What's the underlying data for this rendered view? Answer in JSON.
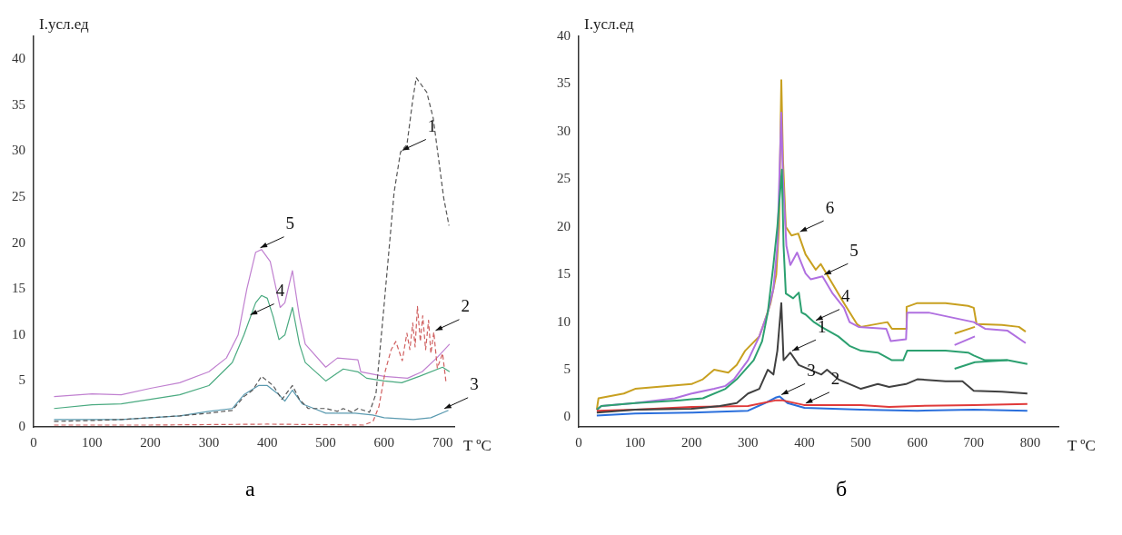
{
  "chart_data": [
    {
      "type": "line",
      "xlabel": "T ºC",
      "ylabel": "I.усл.ед",
      "xlim": [
        0,
        720
      ],
      "ylim": [
        0,
        42.5
      ],
      "xticks": [
        0,
        100,
        200,
        300,
        400,
        500,
        600,
        700
      ],
      "yticks": [
        0,
        5,
        10,
        15,
        20,
        25,
        30,
        35,
        40
      ],
      "grid": false,
      "legend": false,
      "marker": "none",
      "series": [
        {
          "color": "#555555",
          "line_style": "dashed",
          "x": [
            35,
            100,
            150,
            200,
            250,
            300,
            340,
            360,
            375,
            390,
            400,
            410,
            425,
            443,
            455,
            470,
            500,
            520,
            530,
            545,
            555,
            575,
            586,
            599,
            617,
            628,
            639,
            649,
            655,
            673,
            684,
            702,
            711
          ],
          "values": [
            0.6,
            0.7,
            0.8,
            1.0,
            1.2,
            1.5,
            1.8,
            3.3,
            4.0,
            5.5,
            5.0,
            4.5,
            3.0,
            4.5,
            3.0,
            2.0,
            2.0,
            1.7,
            2.0,
            1.6,
            2.0,
            1.6,
            3.6,
            12.6,
            25.5,
            29.9,
            30.7,
            35.6,
            38.0,
            36.4,
            33.6,
            24.9,
            21.9
          ]
        },
        {
          "color": "#d06060",
          "line_style": "dashed",
          "x": [
            35,
            200,
            400,
            565,
            581,
            591,
            602,
            612,
            620,
            631,
            639,
            644,
            649,
            653,
            657,
            662,
            666,
            671,
            676,
            680,
            685,
            691,
            700,
            706
          ],
          "values": [
            0.2,
            0.2,
            0.3,
            0.2,
            0.6,
            2.2,
            6.1,
            8.4,
            9.3,
            7.2,
            10.2,
            8.4,
            11.3,
            8.7,
            13.1,
            9.3,
            12.1,
            8.4,
            11.6,
            8.0,
            10.3,
            6.4,
            8.0,
            4.8
          ]
        },
        {
          "color": "#5a9ab0",
          "x": [
            35,
            150,
            250,
            300,
            340,
            360,
            385,
            400,
            420,
            430,
            443,
            460,
            480,
            500,
            550,
            580,
            600,
            650,
            680,
            710
          ],
          "values": [
            0.8,
            0.8,
            1.2,
            1.7,
            2.0,
            3.5,
            4.5,
            4.5,
            3.5,
            2.8,
            4.0,
            2.5,
            2.0,
            1.5,
            1.5,
            1.3,
            1.0,
            0.8,
            1.0,
            1.8
          ]
        },
        {
          "color": "#4aaa80",
          "x": [
            35,
            100,
            150,
            200,
            250,
            300,
            340,
            360,
            380,
            390,
            400,
            410,
            420,
            430,
            443,
            455,
            465,
            500,
            530,
            555,
            570,
            600,
            630,
            660,
            700,
            712
          ],
          "values": [
            2.0,
            2.4,
            2.5,
            3.0,
            3.5,
            4.5,
            7.0,
            10.0,
            13.5,
            14.3,
            14.0,
            12.0,
            9.5,
            10.0,
            13.0,
            9.0,
            7.0,
            5.0,
            6.3,
            6.0,
            5.3,
            5.0,
            4.8,
            5.5,
            6.5,
            6.0
          ]
        },
        {
          "color": "#c080d0",
          "x": [
            35,
            100,
            150,
            200,
            250,
            300,
            330,
            350,
            365,
            380,
            390,
            405,
            422,
            430,
            443,
            455,
            465,
            500,
            520,
            555,
            560,
            600,
            640,
            665,
            690,
            712
          ],
          "values": [
            3.3,
            3.6,
            3.5,
            4.2,
            4.8,
            6.0,
            7.5,
            10.0,
            15.0,
            19.0,
            19.3,
            18.0,
            13.0,
            13.5,
            17.0,
            12.0,
            9.0,
            6.5,
            7.5,
            7.3,
            6.0,
            5.5,
            5.3,
            6.0,
            7.5,
            9.0
          ]
        }
      ],
      "annotations": [
        {
          "text": "1",
          "x": 628,
          "y": 29.9
        },
        {
          "text": "2",
          "x": 685,
          "y": 10.3
        },
        {
          "text": "3",
          "x": 700,
          "y": 1.8
        },
        {
          "text": "4",
          "x": 368,
          "y": 12
        },
        {
          "text": "5",
          "x": 385,
          "y": 19.3
        },
        "а"
      ]
    },
    {
      "type": "line",
      "xlabel": "T ºC",
      "ylabel": "I.усл.ед",
      "xlim": [
        0,
        850
      ],
      "ylim": [
        -1,
        40
      ],
      "xticks": [
        0,
        100,
        200,
        300,
        400,
        500,
        600,
        700,
        800
      ],
      "yticks": [
        0,
        5,
        10,
        15,
        20,
        25,
        30,
        35,
        40
      ],
      "grid": false,
      "legend": false,
      "marker": "none",
      "series": [
        {
          "color": "#404040",
          "x": [
            32,
            100,
            200,
            250,
            280,
            300,
            320,
            335,
            345,
            352,
            359,
            363,
            375,
            390,
            410,
            430,
            440,
            460,
            480,
            500,
            530,
            550,
            580,
            600,
            650,
            680,
            700,
            750,
            795
          ],
          "values": [
            0.5,
            0.8,
            0.9,
            1.2,
            1.5,
            2.5,
            3.0,
            5.0,
            4.5,
            7.0,
            12.0,
            6.0,
            6.8,
            5.5,
            5.0,
            4.5,
            5.0,
            4.0,
            3.5,
            3.0,
            3.5,
            3.2,
            3.5,
            4.0,
            3.8,
            3.8,
            2.8,
            2.7,
            2.5
          ]
        },
        {
          "color": "#e03a3a",
          "x": [
            32,
            100,
            200,
            300,
            350,
            360,
            399,
            500,
            550,
            600,
            700,
            795
          ],
          "values": [
            0.7,
            0.8,
            1.1,
            1.2,
            1.8,
            1.8,
            1.3,
            1.3,
            1.1,
            1.2,
            1.3,
            1.4
          ]
        },
        {
          "color": "#2a6fdc",
          "x": [
            32,
            100,
            200,
            300,
            330,
            350,
            356,
            370,
            400,
            500,
            600,
            700,
            795
          ],
          "values": [
            0.2,
            0.4,
            0.5,
            0.7,
            1.5,
            2.1,
            2.2,
            1.5,
            1.0,
            0.8,
            0.7,
            0.8,
            0.7
          ]
        },
        {
          "color": "#2ca070",
          "x": [
            32,
            40,
            100,
            180,
            220,
            260,
            280,
            310,
            325,
            335,
            345,
            352,
            360,
            363,
            367,
            380,
            390,
            395,
            402,
            417,
            430,
            460,
            480,
            500,
            530,
            555,
            575,
            582,
            650,
            690,
            700,
            720,
            760,
            795
          ],
          "values": [
            0.8,
            1.2,
            1.5,
            1.8,
            2.0,
            3.0,
            4.0,
            6.0,
            8.0,
            11.0,
            16.0,
            20.0,
            26.0,
            18.0,
            13.0,
            12.5,
            13.1,
            11.0,
            10.8,
            10.0,
            9.5,
            8.5,
            7.5,
            7.0,
            6.8,
            6.0,
            6.0,
            7.0,
            7.0,
            6.8,
            6.5,
            6.0,
            6.0,
            5.6
          ]
        },
        {
          "color": "#2ca070",
          "x": [
            666,
            702,
            760
          ],
          "values": [
            5.1,
            5.8,
            6.0
          ]
        },
        {
          "color": "#b070e0",
          "x": [
            32,
            40,
            100,
            170,
            200,
            240,
            260,
            275,
            300,
            320,
            335,
            345,
            352,
            359,
            362,
            368,
            375,
            387,
            402,
            411,
            432,
            450,
            470,
            480,
            496,
            545,
            553,
            580,
            582,
            620,
            660,
            700,
            720,
            760,
            792
          ],
          "values": [
            0.8,
            1.2,
            1.5,
            2.0,
            2.5,
            3.0,
            3.3,
            4.0,
            6.0,
            8.5,
            11.0,
            13.5,
            18.0,
            32.0,
            25.0,
            18.0,
            16.0,
            17.3,
            15.1,
            14.5,
            14.8,
            13.0,
            11.5,
            10.0,
            9.5,
            9.3,
            8.0,
            8.2,
            11.0,
            11.0,
            10.5,
            10.0,
            9.3,
            9.1,
            7.8
          ]
        },
        {
          "color": "#b070e0",
          "x": [
            666,
            702
          ],
          "values": [
            7.6,
            8.5
          ]
        },
        {
          "color": "#c8a020",
          "x": [
            32,
            35,
            80,
            100,
            200,
            220,
            240,
            265,
            280,
            295,
            320,
            329,
            340,
            350,
            355,
            359,
            362,
            367,
            377,
            389,
            402,
            420,
            429,
            450,
            470,
            493,
            500,
            547,
            555,
            580,
            581,
            600,
            650,
            690,
            700,
            705,
            750,
            780,
            792
          ],
          "values": [
            0.8,
            2.0,
            2.5,
            3.0,
            3.5,
            4.0,
            5.0,
            4.7,
            5.5,
            7.0,
            8.5,
            10.0,
            12.0,
            15.0,
            20.0,
            35.4,
            27.0,
            20.0,
            19.1,
            19.3,
            17.1,
            15.5,
            16.1,
            14.0,
            12.0,
            9.8,
            9.5,
            10.0,
            9.3,
            9.3,
            11.6,
            12.0,
            12.0,
            11.7,
            11.5,
            9.8,
            9.7,
            9.5,
            9.0
          ]
        },
        {
          "color": "#c8a020",
          "x": [
            666,
            702
          ],
          "values": [
            8.8,
            9.5
          ]
        }
      ],
      "annotations": [
        {
          "text": "1",
          "x": 375,
          "y": 6.8
        },
        {
          "text": "2",
          "x": 399,
          "y": 1.3
        },
        {
          "text": "3",
          "x": 356,
          "y": 2.2
        },
        {
          "text": "4",
          "x": 417,
          "y": 10
        },
        {
          "text": "5",
          "x": 432,
          "y": 14.8
        },
        {
          "text": "6",
          "x": 389,
          "y": 19.3
        },
        "б"
      ]
    }
  ]
}
